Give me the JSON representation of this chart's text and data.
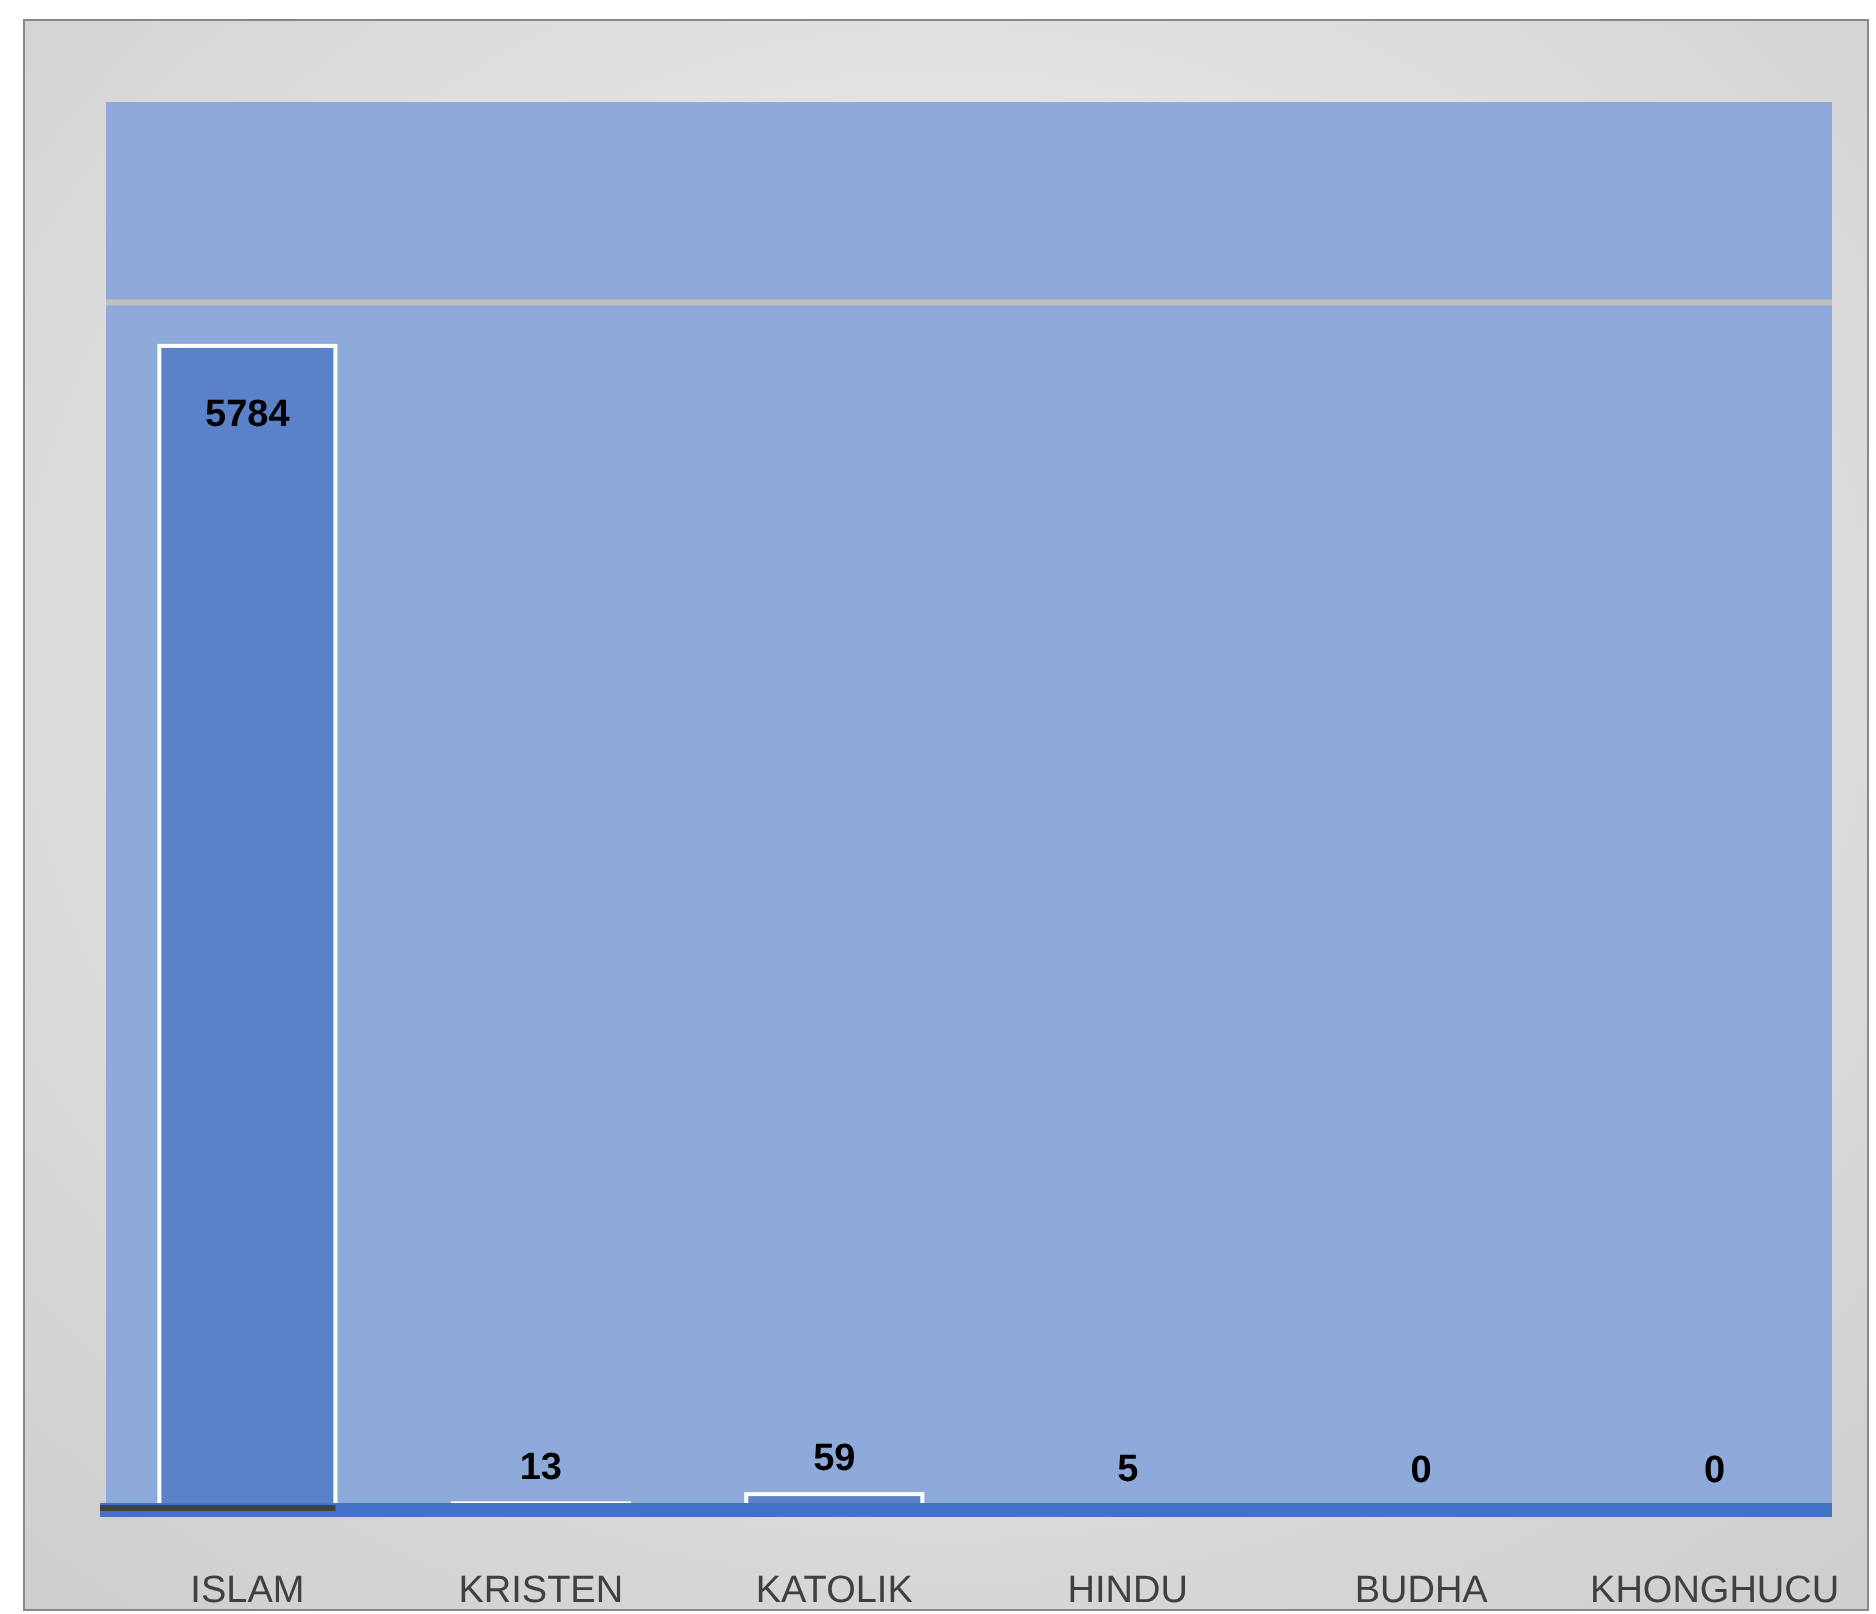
{
  "chart_data": {
    "type": "bar",
    "categories": [
      "ISLAM",
      "KRISTEN",
      "KATOLIK",
      "HINDU",
      "BUDHA",
      "KHONGHUCU"
    ],
    "values": [
      5784,
      13,
      59,
      5,
      0,
      0
    ],
    "color": "#5b82c9",
    "ylim": [
      0,
      7000
    ],
    "ref_lines": [
      {
        "axis": "y",
        "value": 6000,
        "color": "#bfbfbf"
      }
    ],
    "tick_labels": "x",
    "data_labels": true
  }
}
